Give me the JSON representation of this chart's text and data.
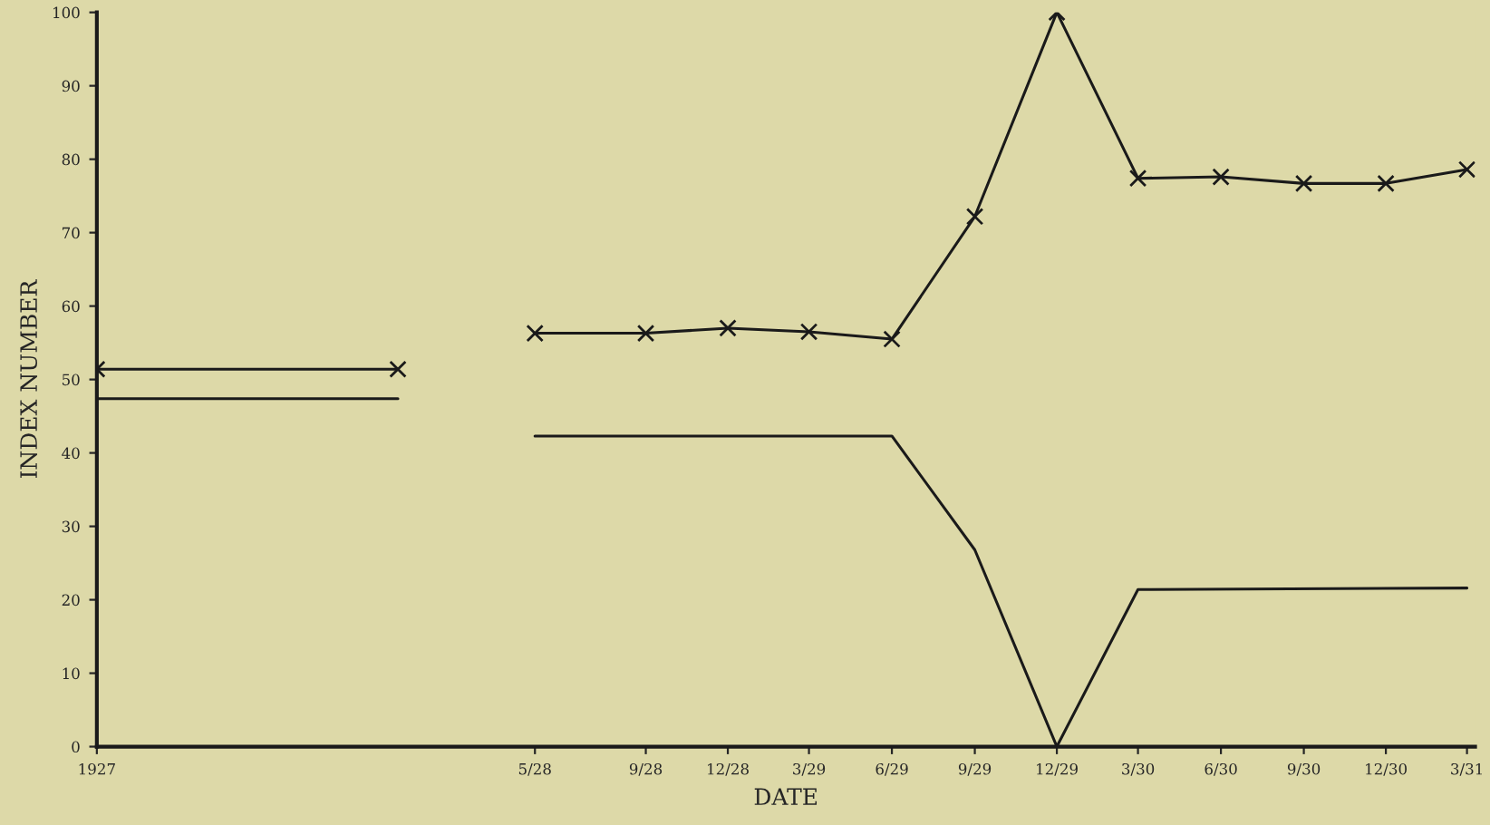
{
  "chart_data": {
    "type": "line",
    "xlabel": "DATE",
    "ylabel": "INDEX NUMBER",
    "xlim": [
      "1927",
      "1931-03-10"
    ],
    "xticks": [
      {
        "value": "1927",
        "label": "1927"
      },
      {
        "value": "1928-05",
        "label": "5/28"
      },
      {
        "value": "1928-09",
        "label": "9/28"
      },
      {
        "value": "1928-12",
        "label": "12/28"
      },
      {
        "value": "1929-03",
        "label": "3/29"
      },
      {
        "value": "1929-06",
        "label": "6/29"
      },
      {
        "value": "1929-09",
        "label": "9/29"
      },
      {
        "value": "1929-12",
        "label": "12/29"
      },
      {
        "value": "1930-03",
        "label": "3/30"
      },
      {
        "value": "1930-06",
        "label": "6/30"
      },
      {
        "value": "1930-09",
        "label": "9/30"
      },
      {
        "value": "1930-12",
        "label": "12/30"
      },
      {
        "value": "1931-03",
        "label": "3/31"
      }
    ],
    "ylim": [
      0,
      100
    ],
    "yticks": [
      0,
      10,
      20,
      30,
      40,
      50,
      60,
      70,
      80,
      90,
      100
    ],
    "grid": false,
    "line_style": "solid",
    "series": [
      {
        "color": "#1a1a1a",
        "marker": "cross",
        "x": [
          "1927",
          "1927-12",
          "1928-02",
          "1928-05",
          "1928-09",
          "1928-12",
          "1929-03",
          "1929-06",
          "1929-09",
          "1929-12",
          "1930-03",
          "1930-06",
          "1930-09",
          "1930-12",
          "1931-03"
        ],
        "values": [
          51.4,
          51.4,
          null,
          56.3,
          56.3,
          57,
          56.5,
          55.5,
          72.2,
          100,
          77.4,
          77.6,
          76.7,
          76.7,
          78.6
        ]
      },
      {
        "color": "#1a1a1a",
        "marker": "none",
        "x": [
          "1927",
          "1927-12",
          "1928-02",
          "1928-05",
          "1929-06",
          "1929-09",
          "1929-12",
          "1930-03",
          "1931-03"
        ],
        "values": [
          47.4,
          47.4,
          null,
          42.3,
          42.3,
          26.8,
          0,
          21.4,
          21.6
        ]
      }
    ]
  }
}
